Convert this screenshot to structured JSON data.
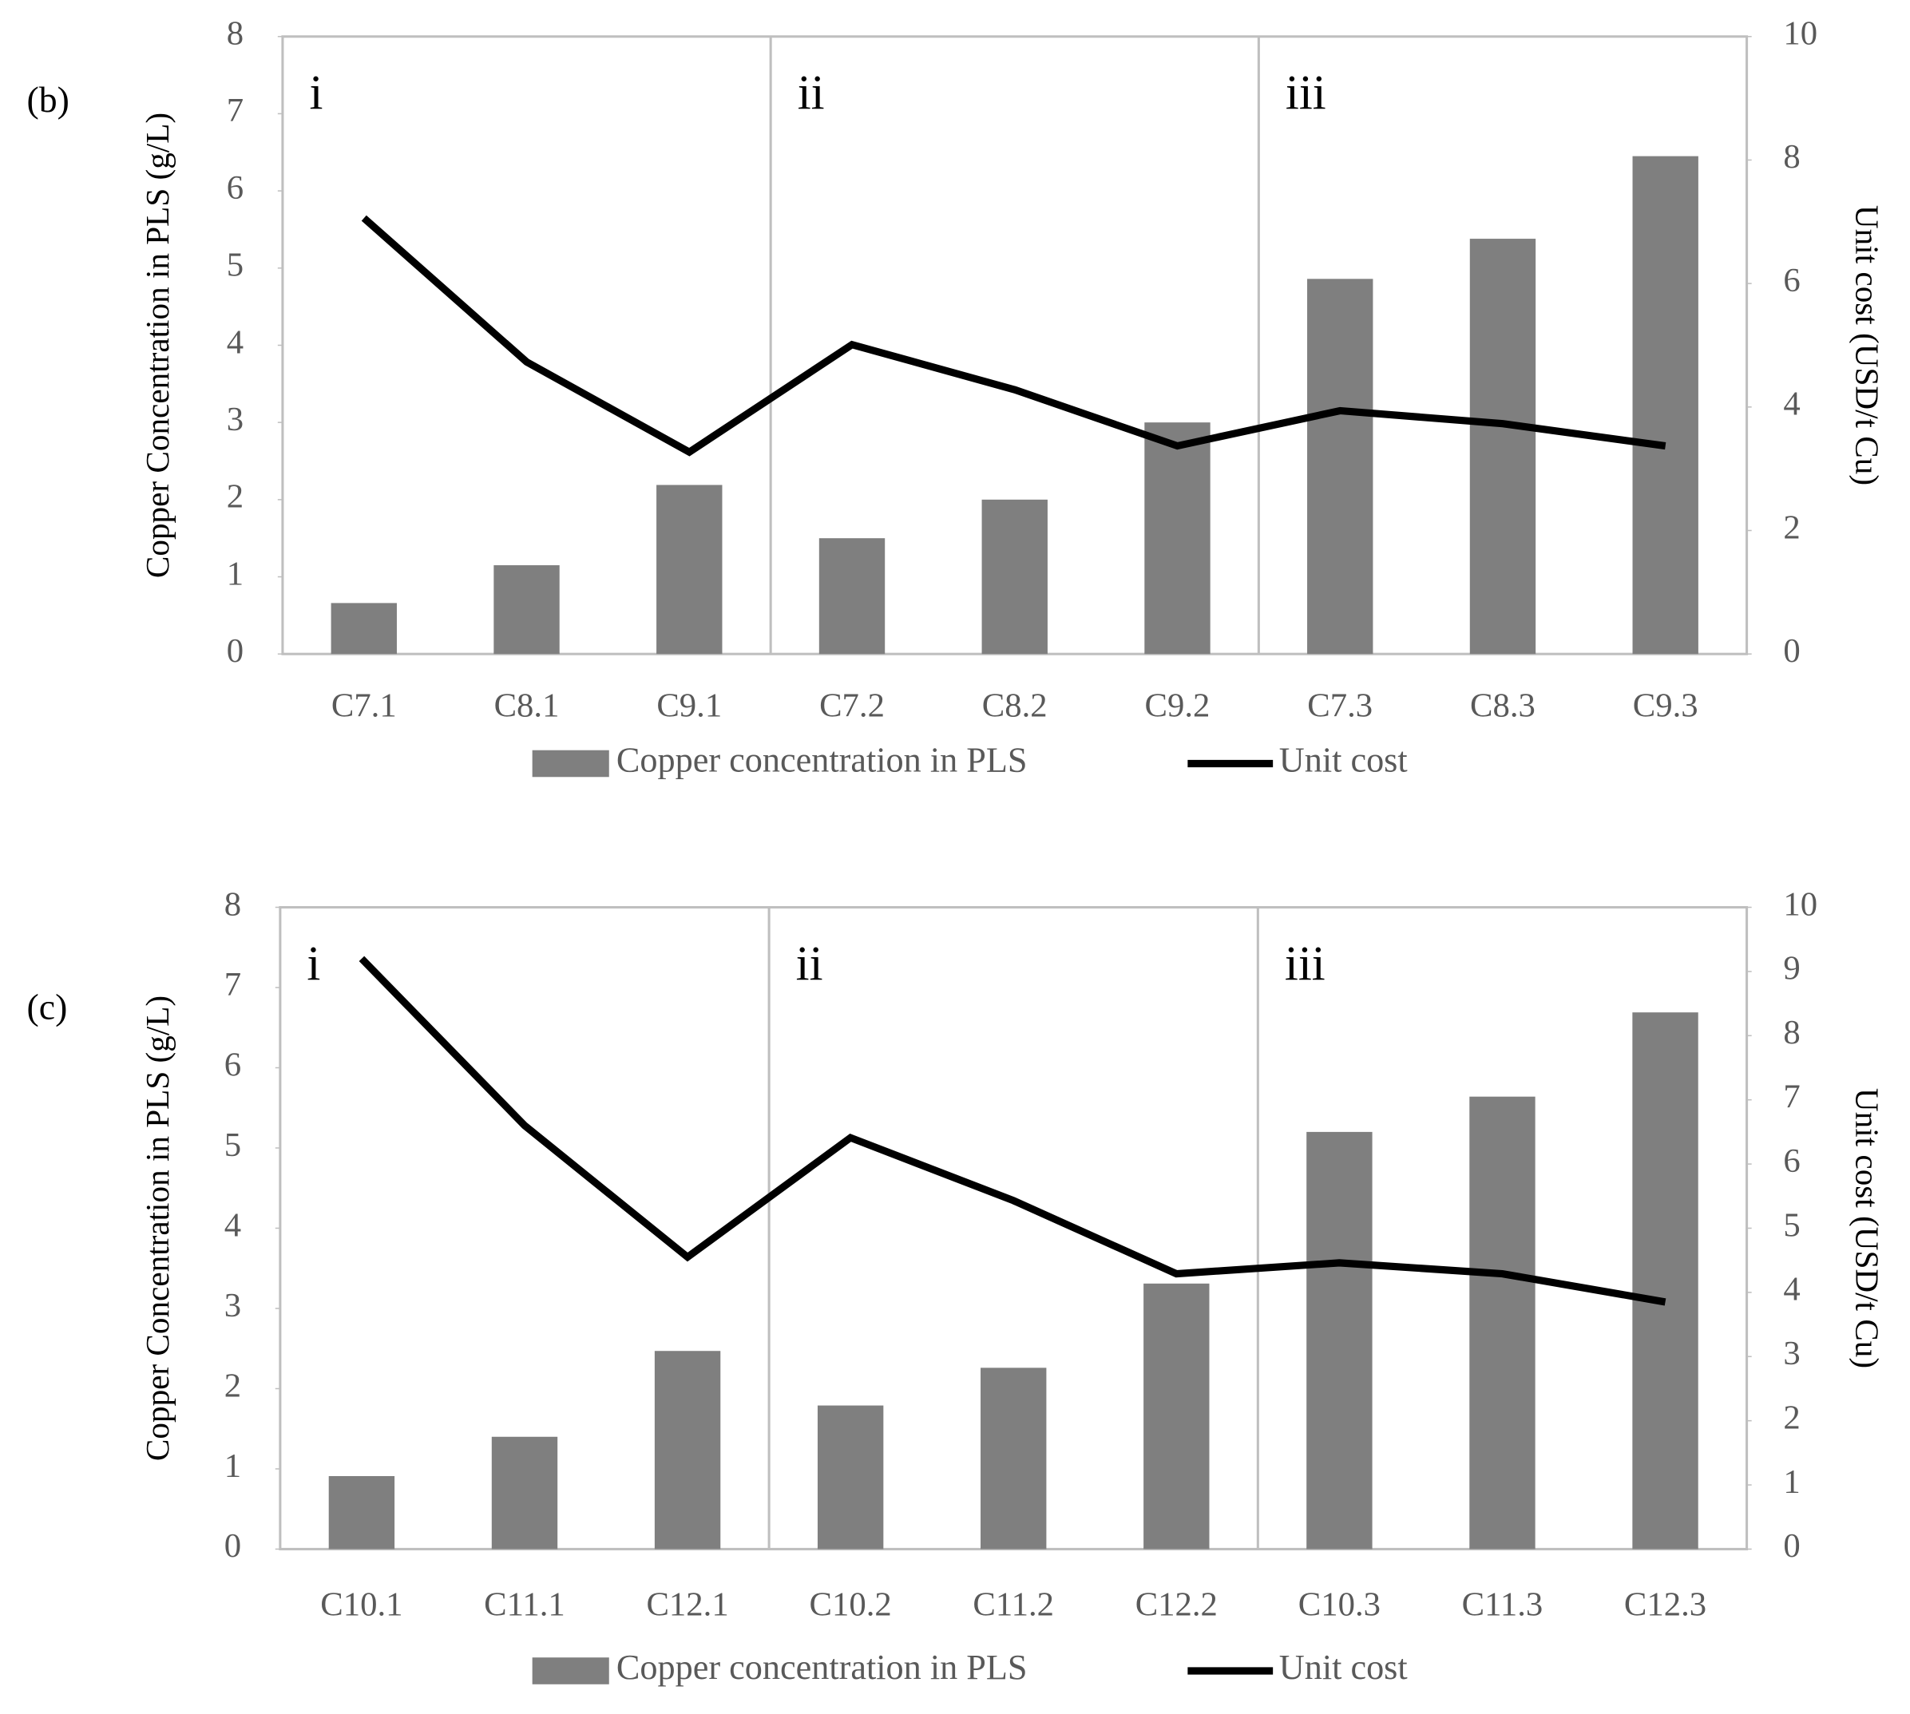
{
  "chart_data": [
    {
      "type": "bar",
      "panel_label": "(b)",
      "regions": [
        "i",
        "ii",
        "iii"
      ],
      "y_label": "Copper Concentration in PLS (g/L)",
      "y2_label": "Unit cost (USD/t Cu)",
      "categories": [
        "C7.1",
        "C8.1",
        "C9.1",
        "C7.2",
        "C8.2",
        "C9.2",
        "C7.3",
        "C8.3",
        "C9.3"
      ],
      "series": [
        {
          "name": "Copper concentration in PLS",
          "color": "#7f7f7f",
          "values": [
            0.66,
            1.15,
            2.19,
            1.5,
            2.0,
            3.0,
            4.86,
            5.38,
            6.45
          ]
        },
        {
          "name": "Unit cost",
          "color": "#000000",
          "type": "line",
          "axis": "y2",
          "values": [
            7.06,
            4.73,
            3.27,
            5.01,
            4.28,
            3.37,
            3.94,
            3.73,
            3.37
          ]
        }
      ],
      "ylim": [
        0,
        8
      ],
      "yticks": [
        0,
        1,
        2,
        3,
        4,
        5,
        6,
        7,
        8
      ],
      "y2lim": [
        0,
        10
      ],
      "y2ticks": [
        0,
        2,
        4,
        6,
        8,
        10
      ]
    },
    {
      "type": "bar",
      "panel_label": "(c)",
      "regions": [
        "i",
        "ii",
        "iii"
      ],
      "y_label": "Copper Concentration in PLS (g/L)",
      "y2_label": "Unit cost (USD/t Cu)",
      "categories": [
        "C10.1",
        "C11.1",
        "C12.1",
        "C10.2",
        "C11.2",
        "C12.2",
        "C10.3",
        "C11.3",
        "C12.3"
      ],
      "series": [
        {
          "name": "Copper concentration in PLS",
          "color": "#7f7f7f",
          "values": [
            0.91,
            1.4,
            2.47,
            1.79,
            2.26,
            3.31,
            5.2,
            5.64,
            6.69
          ]
        },
        {
          "name": "Unit cost",
          "color": "#000000",
          "type": "line",
          "axis": "y2",
          "values": [
            9.2,
            6.6,
            4.55,
            6.41,
            5.43,
            4.29,
            4.46,
            4.29,
            3.85
          ]
        }
      ],
      "ylim": [
        0,
        8
      ],
      "yticks": [
        0,
        1,
        2,
        3,
        4,
        5,
        6,
        7,
        8
      ],
      "y2lim": [
        0,
        10
      ],
      "y2ticks": [
        0,
        1,
        2,
        3,
        4,
        5,
        6,
        7,
        8,
        9,
        10
      ]
    }
  ]
}
